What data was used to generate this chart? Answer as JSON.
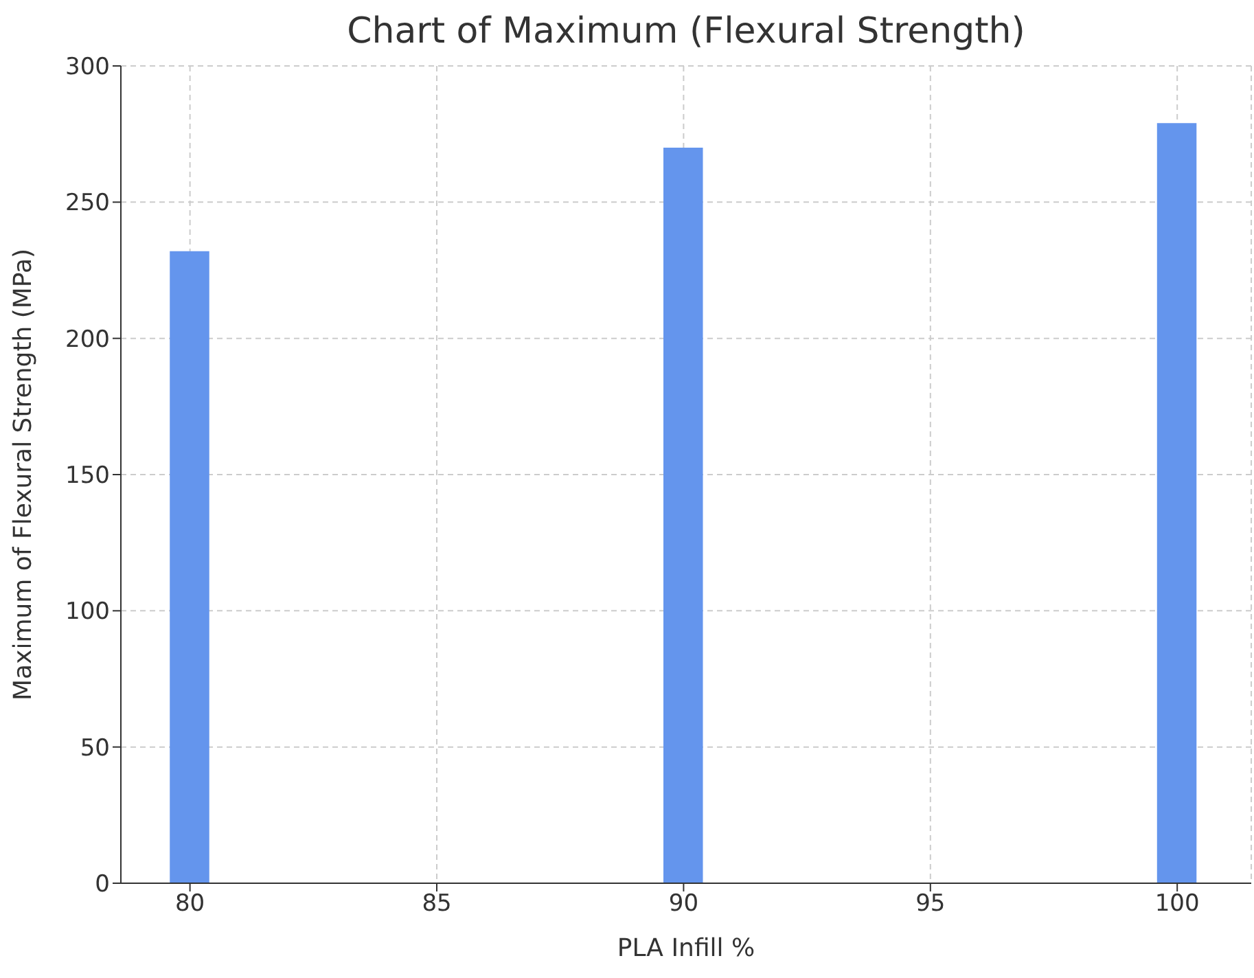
{
  "chart_data": {
    "type": "bar",
    "title": "Chart of Maximum (Flexural Strength)",
    "xlabel": "PLA Infill %",
    "ylabel": "Maximum of Flexural Strength (MPa)",
    "x": [
      80,
      90,
      100
    ],
    "values": [
      232,
      270,
      279
    ],
    "color": "#6495ed",
    "xlim": [
      78.6,
      101.5
    ],
    "xticks": [
      80,
      85,
      90,
      95,
      100
    ],
    "ylim": [
      0,
      300
    ],
    "yticks": [
      0,
      50,
      100,
      150,
      200,
      250,
      300
    ],
    "grid": true
  }
}
